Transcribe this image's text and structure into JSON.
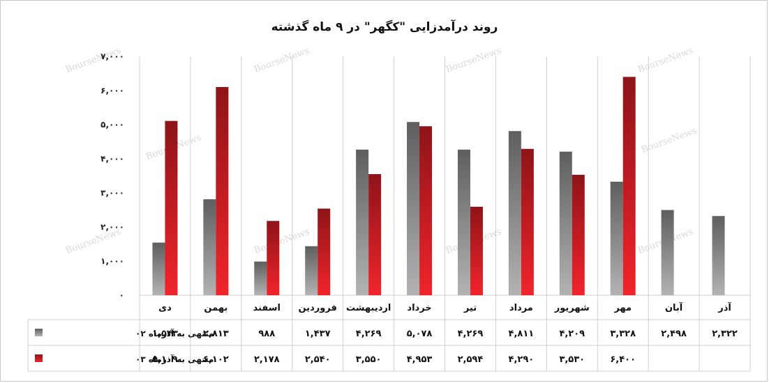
{
  "watermark": "BourseNews",
  "chart_data": {
    "type": "bar",
    "title": "روند درآمدزایی \"کگهر\" در ۹ ماه گذشته",
    "categories": [
      "دی",
      "بهمن",
      "اسفند",
      "فروردین",
      "اردیبهشت",
      "خرداد",
      "تیر",
      "مرداد",
      "شهریور",
      "مهر",
      "آبان",
      "آذر"
    ],
    "ylim": [
      0,
      7000
    ],
    "yticks": [
      0,
      1000,
      2000,
      3000,
      4000,
      5000,
      6000,
      7000
    ],
    "ytick_labels": [
      "۰",
      "۱,۰۰۰",
      "۲,۰۰۰",
      "۳,۰۰۰",
      "۴,۰۰۰",
      "۵,۰۰۰",
      "۶,۰۰۰",
      "۷,۰۰۰"
    ],
    "grid": "vertical category separators",
    "legend": "table-left",
    "series": [
      {
        "name": "منتهی به آذرماه ۰۲",
        "color": "#808080",
        "values": [
          1543,
          2813,
          988,
          1437,
          4269,
          5078,
          4269,
          4811,
          4209,
          3328,
          2498,
          2322
        ],
        "labels": [
          "۱,۵۴۳",
          "۲,۸۱۳",
          "۹۸۸",
          "۱,۴۳۷",
          "۴,۲۶۹",
          "۵,۰۷۸",
          "۴,۲۶۹",
          "۴,۸۱۱",
          "۴,۲۰۹",
          "۳,۳۲۸",
          "۲,۴۹۸",
          "۲,۳۲۲"
        ]
      },
      {
        "name": "منتهی به آذرماه ۰۳",
        "color": "#d62026",
        "values": [
          5109,
          6102,
          2178,
          2540,
          3550,
          4953,
          2594,
          4290,
          3530,
          6400,
          null,
          null
        ],
        "labels": [
          "۵,۱۰۹",
          "۶,۱۰۲",
          "۲,۱۷۸",
          "۲,۵۴۰",
          "۳,۵۵۰",
          "۴,۹۵۳",
          "۲,۵۹۴",
          "۴,۲۹۰",
          "۳,۵۳۰",
          "۶,۴۰۰",
          "",
          ""
        ]
      }
    ]
  }
}
